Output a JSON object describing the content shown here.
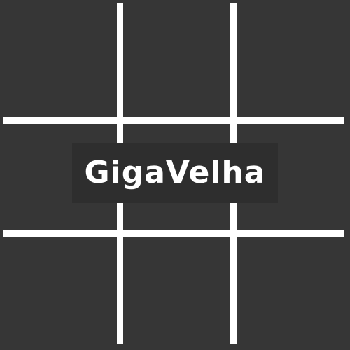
{
  "game": {
    "title": "GigaVelha"
  },
  "colors": {
    "background": "#363636",
    "grid_lines": "#ffffff",
    "title_panel": "#2e2e2e",
    "title_text": "#ffffff"
  }
}
